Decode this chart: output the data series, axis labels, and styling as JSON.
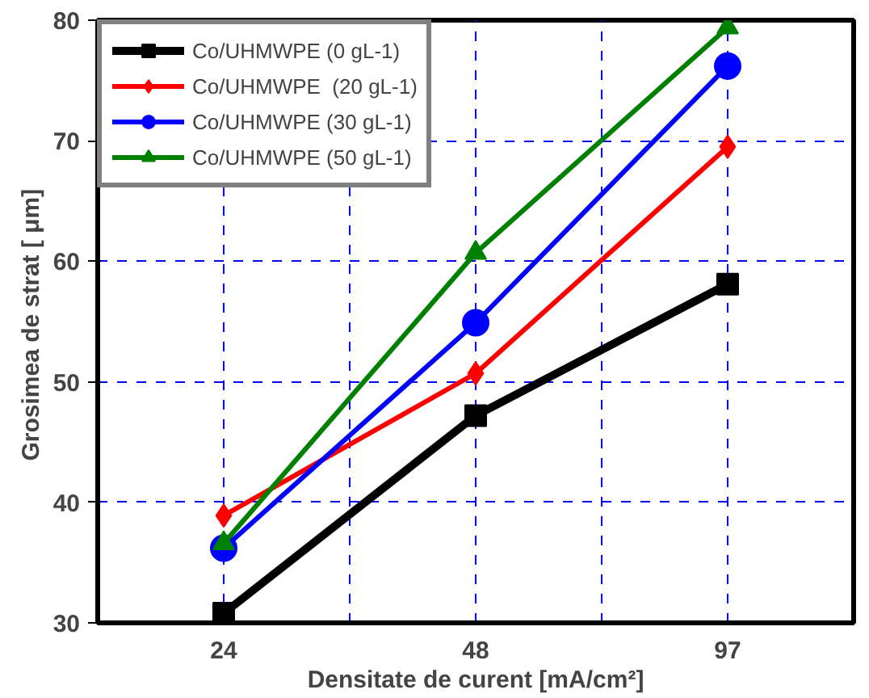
{
  "chart_data": {
    "type": "line",
    "xlabel": "Densitate de curent [mA/cm²]",
    "ylabel": "Grosimea de strat [  μm]",
    "categories": [
      "24",
      "48",
      "97"
    ],
    "ylim": [
      30,
      80
    ],
    "yticks": [
      30,
      40,
      50,
      60,
      70,
      80
    ],
    "grid": true,
    "legend": "top left",
    "series": [
      {
        "name": "Co/UHMWPE (0 gL-1)",
        "color": "#000000",
        "marker": "square",
        "values": [
          30.8,
          47.2,
          58.1
        ]
      },
      {
        "name": "Co/UHMWPE  (20 gL-1)",
        "color": "#ff0000",
        "marker": "diamond",
        "values": [
          38.9,
          50.7,
          69.5
        ]
      },
      {
        "name": "Co/UHMWPE (30 gL-1)",
        "color": "#0000ff",
        "marker": "circle",
        "values": [
          36.2,
          54.9,
          76.2
        ]
      },
      {
        "name": "Co/UHMWPE (50 gL-1)",
        "color": "#008000",
        "marker": "triangle",
        "values": [
          36.6,
          60.7,
          79.4
        ]
      }
    ]
  }
}
